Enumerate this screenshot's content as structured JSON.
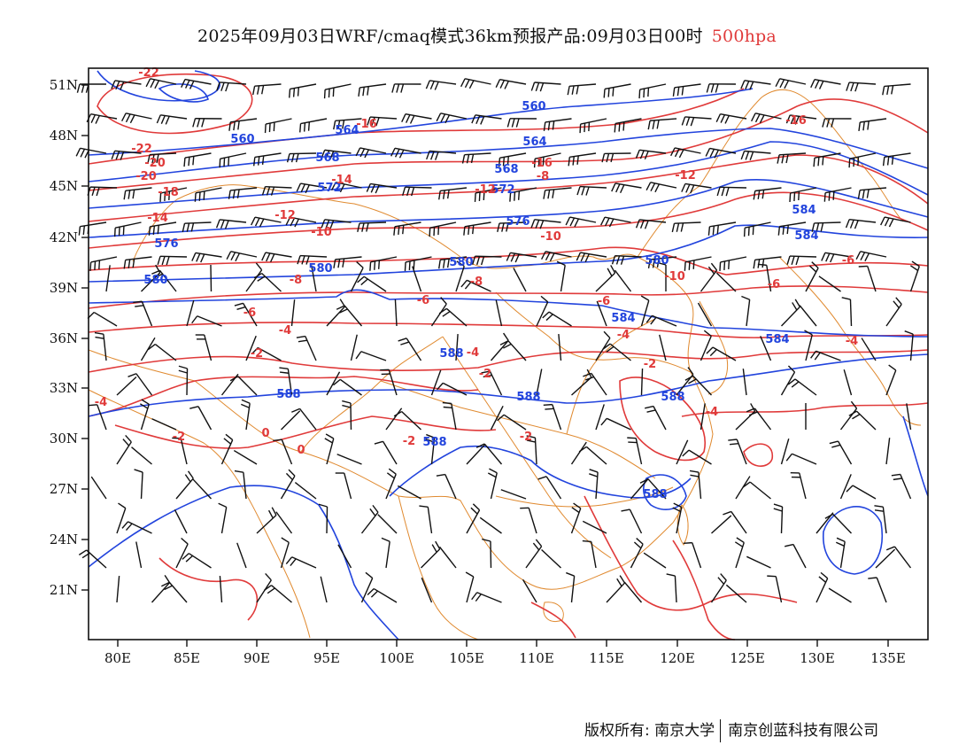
{
  "title": {
    "main": "2025年09月03日WRF/cmaq模式36km预报产品:09月03日00时",
    "level": "500hpa"
  },
  "footer": {
    "copyright": "版权所有: 南京大学",
    "company": "南京创蓝科技有限公司"
  },
  "axes": {
    "lon_labels": [
      "80E",
      "85E",
      "90E",
      "95E",
      "100E",
      "105E",
      "110E",
      "115E",
      "120E",
      "125E",
      "130E",
      "135E"
    ],
    "lat_labels": [
      "51N",
      "48N",
      "45N",
      "42N",
      "39N",
      "36N",
      "33N",
      "30N",
      "27N",
      "24N",
      "21N"
    ]
  },
  "colors": {
    "geopotential": "#2244dd",
    "temperature": "#e03a3a",
    "border": "#e08a30",
    "wind": "#111111"
  },
  "legend": {
    "geopotential_labels": [
      "560",
      "560",
      "564",
      "564",
      "568",
      "568",
      "572",
      "572",
      "576",
      "576",
      "580",
      "580",
      "580",
      "580",
      "584",
      "584",
      "584",
      "584",
      "588",
      "588",
      "588",
      "588",
      "588",
      "588"
    ],
    "temperature_labels": [
      "-22",
      "-22",
      "-20",
      "-20",
      "-18",
      "-16",
      "-16",
      "-16",
      "-14",
      "-14",
      "-12",
      "-12",
      "-12",
      "-10",
      "-10",
      "-10",
      "-8",
      "-8",
      "-8",
      "-6",
      "-6",
      "-6",
      "-6",
      "-6",
      "-4",
      "-4",
      "-4",
      "-4",
      "-4",
      "-4",
      "-2",
      "-2",
      "-2",
      "-2",
      "-2",
      "-2",
      "0",
      "0"
    ]
  },
  "icons": {
    "wind": "wind-barb-icon"
  }
}
